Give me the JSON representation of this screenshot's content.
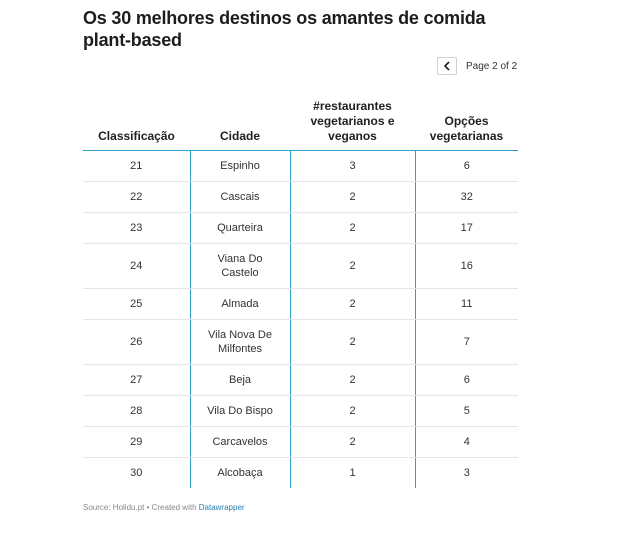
{
  "title": "Os 30 melhores destinos os amantes de comida plant-based",
  "pager": {
    "text": "Page 2 of 2",
    "prev_icon": "chevron-left-icon"
  },
  "chart_data": {
    "type": "table",
    "columns": [
      "Classificação",
      "Cidade",
      "#restaurantes vegetarianos e veganos",
      "Opções vegetarianas"
    ],
    "rows": [
      [
        "21",
        "Espinho",
        "3",
        "6"
      ],
      [
        "22",
        "Cascais",
        "2",
        "32"
      ],
      [
        "23",
        "Quarteira",
        "2",
        "17"
      ],
      [
        "24",
        "Viana Do Castelo",
        "2",
        "16"
      ],
      [
        "25",
        "Almada",
        "2",
        "11"
      ],
      [
        "26",
        "Vila Nova De Milfontes",
        "2",
        "7"
      ],
      [
        "27",
        "Beja",
        "2",
        "6"
      ],
      [
        "28",
        "Vila Do Bispo",
        "2",
        "5"
      ],
      [
        "29",
        "Carcavelos",
        "2",
        "4"
      ],
      [
        "30",
        "Alcobaça",
        "1",
        "3"
      ]
    ]
  },
  "footer": {
    "source": "Source: Holidu.pt • Created with ",
    "tool": "Datawrapper"
  },
  "colors": {
    "accent": "#2f9fc6",
    "link": "#2a7fb0",
    "row_rule": "#e6e6e6"
  }
}
